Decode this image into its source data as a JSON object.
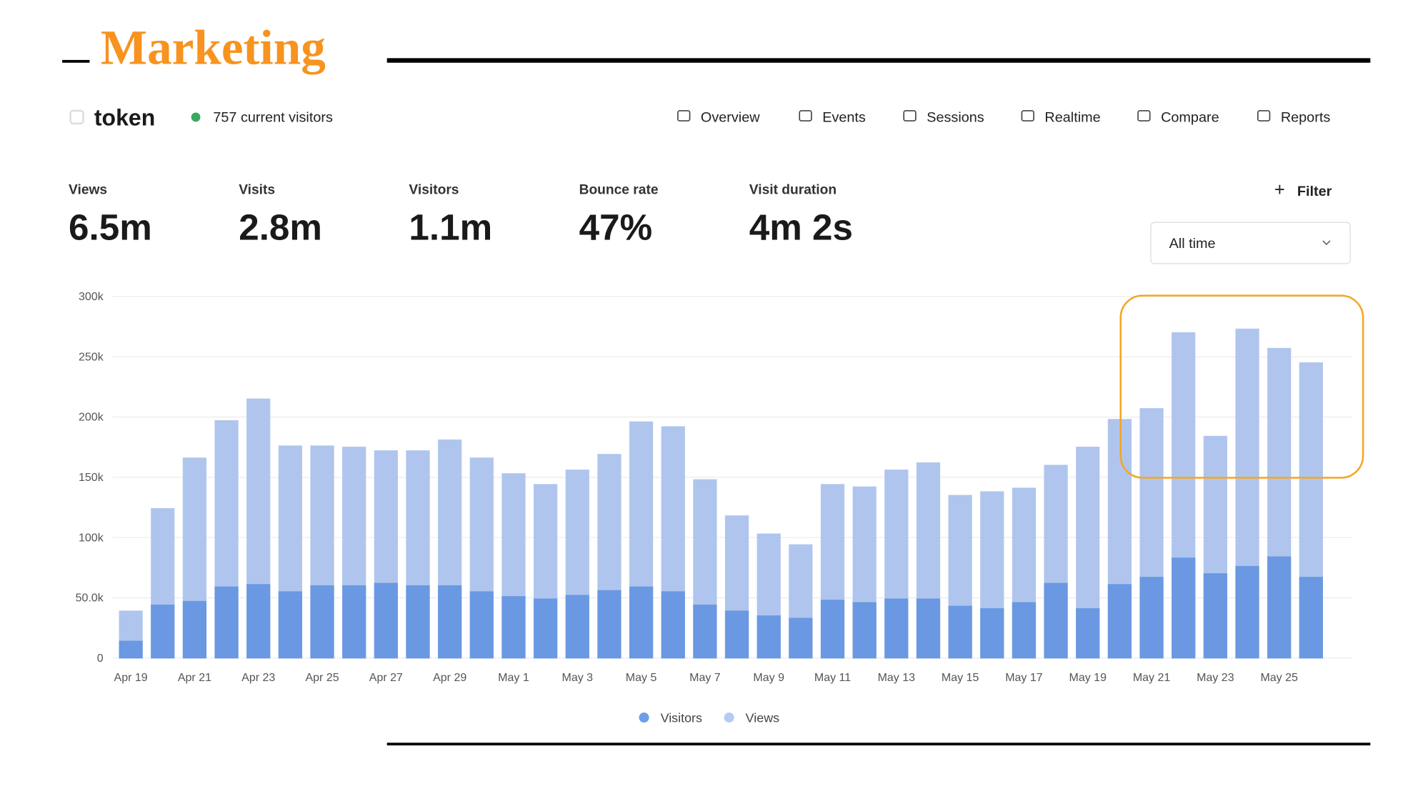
{
  "title": "Marketing",
  "site": {
    "name": "token",
    "current_visitors": "757 current visitors"
  },
  "nav": [
    "Overview",
    "Events",
    "Sessions",
    "Realtime",
    "Compare",
    "Reports"
  ],
  "stats": [
    {
      "label": "Views",
      "value": "6.5m"
    },
    {
      "label": "Visits",
      "value": "2.8m"
    },
    {
      "label": "Visitors",
      "value": "1.1m"
    },
    {
      "label": "Bounce rate",
      "value": "47%"
    },
    {
      "label": "Visit duration",
      "value": "4m 2s"
    }
  ],
  "filter": "Filter",
  "date_range": "All time",
  "chart_data": {
    "type": "bar",
    "barmode": "overlay",
    "categories": [
      "Apr 19",
      null,
      "Apr 21",
      null,
      "Apr 23",
      null,
      "Apr 25",
      null,
      "Apr 27",
      null,
      "Apr 29",
      null,
      "May 1",
      null,
      "May 3",
      null,
      "May 5",
      null,
      "May 7",
      null,
      "May 9",
      null,
      "May 11",
      null,
      "May 13",
      null,
      "May 15",
      null,
      "May 17",
      null,
      "May 19",
      null,
      "May 21",
      null,
      "May 23",
      null,
      "May 25",
      null
    ],
    "series": [
      {
        "name": "Views",
        "color": "#b4cbf4",
        "values": [
          39000,
          124000,
          166000,
          197000,
          215000,
          176000,
          176000,
          175000,
          172000,
          172000,
          181000,
          166000,
          153000,
          144000,
          156000,
          169000,
          196000,
          192000,
          148000,
          118000,
          103000,
          94000,
          144000,
          142000,
          156000,
          162000,
          135000,
          138000,
          141000,
          160000,
          175000,
          198000,
          207000,
          270000,
          184000,
          273000,
          257000,
          245000
        ]
      },
      {
        "name": "Visitors",
        "color": "#6d9de9",
        "values": [
          14000,
          44000,
          47000,
          59000,
          61000,
          55000,
          60000,
          60000,
          62000,
          60000,
          60000,
          55000,
          51000,
          49000,
          52000,
          56000,
          59000,
          55000,
          44000,
          39000,
          35000,
          33000,
          48000,
          46000,
          49000,
          49000,
          43000,
          41000,
          46000,
          62000,
          41000,
          61000,
          67000,
          83000,
          70000,
          76000,
          84000,
          67000
        ]
      }
    ],
    "ylim": [
      0,
      300000
    ],
    "yticks": [
      0,
      {
        "value": 50000,
        "label": "50.0k"
      },
      {
        "value": 100000,
        "label": "100k"
      },
      {
        "value": 150000,
        "label": "150k"
      },
      {
        "value": 200000,
        "label": "200k"
      },
      {
        "value": 250000,
        "label": "250k"
      },
      {
        "value": 300000,
        "label": "300k"
      }
    ],
    "grid": true,
    "legend": "bottom"
  }
}
